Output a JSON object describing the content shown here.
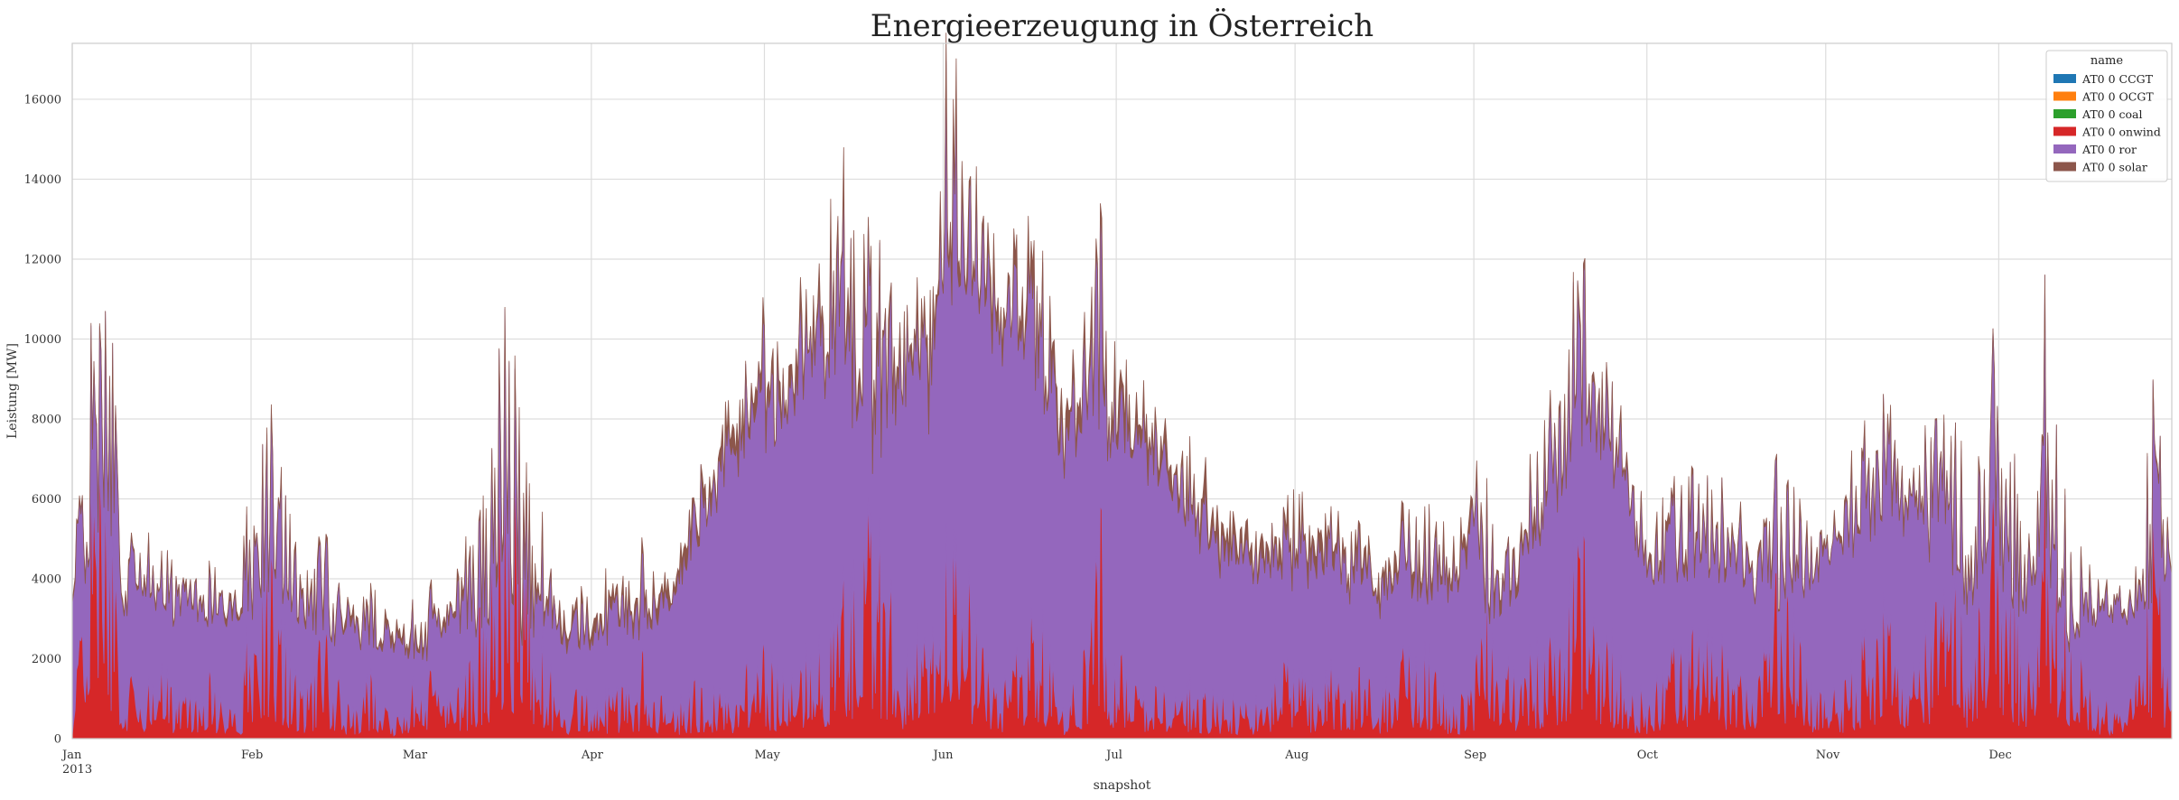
{
  "chart_data": {
    "type": "area",
    "stacked": true,
    "title": "Energieerzeugung in Österreich",
    "xlabel": "snapshot",
    "ylabel": "Leistung [MW]",
    "ylim": [
      0,
      17400
    ],
    "yticks": [
      0,
      2000,
      4000,
      6000,
      8000,
      10000,
      12000,
      14000,
      16000
    ],
    "xlim": [
      "2013-01-01",
      "2013-12-31"
    ],
    "xticks": [
      {
        "date": "2013-01-01",
        "label": "Jan",
        "sublabel": "2013"
      },
      {
        "date": "2013-02-01",
        "label": "Feb"
      },
      {
        "date": "2013-03-01",
        "label": "Mar"
      },
      {
        "date": "2013-04-01",
        "label": "Apr"
      },
      {
        "date": "2013-05-01",
        "label": "May"
      },
      {
        "date": "2013-06-01",
        "label": "Jun"
      },
      {
        "date": "2013-07-01",
        "label": "Jul"
      },
      {
        "date": "2013-08-01",
        "label": "Aug"
      },
      {
        "date": "2013-09-01",
        "label": "Sep"
      },
      {
        "date": "2013-10-01",
        "label": "Oct"
      },
      {
        "date": "2013-11-01",
        "label": "Nov"
      },
      {
        "date": "2013-12-01",
        "label": "Dec"
      }
    ],
    "grid": true,
    "legend": {
      "title": "name",
      "position": "top-right",
      "entries": [
        "AT0 0 CCGT",
        "AT0 0 OCGT",
        "AT0 0 coal",
        "AT0 0 onwind",
        "AT0 0 ror",
        "AT0 0 solar"
      ]
    },
    "series": [
      {
        "name": "AT0 0 CCGT",
        "color": "#1f77b4",
        "dates": [
          "2013-01-01",
          "2013-12-31"
        ],
        "values": [
          0,
          0
        ]
      },
      {
        "name": "AT0 0 OCGT",
        "color": "#ff7f0e",
        "dates": [
          "2013-01-01",
          "2013-12-31"
        ],
        "values": [
          0,
          0
        ]
      },
      {
        "name": "AT0 0 coal",
        "color": "#2ca02c",
        "dates": [
          "2013-01-01",
          "2013-12-31"
        ],
        "values": [
          0,
          0
        ]
      },
      {
        "name": "AT0 0 onwind",
        "color": "#d62728",
        "dates": [
          "2013-01-01",
          "2013-01-04",
          "2013-01-06",
          "2013-01-08",
          "2013-01-10",
          "2013-01-13",
          "2013-01-16",
          "2013-01-20",
          "2013-01-24",
          "2013-01-27",
          "2013-01-30",
          "2013-02-02",
          "2013-02-06",
          "2013-02-10",
          "2013-02-14",
          "2013-02-18",
          "2013-02-22",
          "2013-02-26",
          "2013-03-02",
          "2013-03-06",
          "2013-03-10",
          "2013-03-14",
          "2013-03-17",
          "2013-03-20",
          "2013-03-23",
          "2013-03-27",
          "2013-04-01",
          "2013-04-05",
          "2013-04-10",
          "2013-04-15",
          "2013-04-20",
          "2013-04-25",
          "2013-04-30",
          "2013-05-05",
          "2013-05-10",
          "2013-05-15",
          "2013-05-20",
          "2013-05-25",
          "2013-05-30",
          "2013-06-01",
          "2013-06-03",
          "2013-06-07",
          "2013-06-12",
          "2013-06-17",
          "2013-06-22",
          "2013-06-26",
          "2013-06-28",
          "2013-07-01",
          "2013-07-06",
          "2013-07-12",
          "2013-07-18",
          "2013-07-24",
          "2013-07-30",
          "2013-08-05",
          "2013-08-10",
          "2013-08-16",
          "2013-08-22",
          "2013-08-28",
          "2013-09-01",
          "2013-09-03",
          "2013-09-08",
          "2013-09-14",
          "2013-09-20",
          "2013-09-26",
          "2013-10-01",
          "2013-10-06",
          "2013-10-12",
          "2013-10-18",
          "2013-10-24",
          "2013-10-30",
          "2013-11-04",
          "2013-11-10",
          "2013-11-16",
          "2013-11-22",
          "2013-11-26",
          "2013-11-30",
          "2013-12-03",
          "2013-12-06",
          "2013-12-09",
          "2013-12-13",
          "2013-12-18",
          "2013-12-22",
          "2013-12-25",
          "2013-12-28",
          "2013-12-31"
        ],
        "values": [
          300,
          4500,
          5400,
          3800,
          1000,
          800,
          1500,
          600,
          1200,
          700,
          300,
          3600,
          2300,
          900,
          1700,
          500,
          1300,
          400,
          1200,
          800,
          1100,
          2400,
          4800,
          3500,
          1800,
          600,
          900,
          700,
          1300,
          500,
          1100,
          700,
          1600,
          900,
          1700,
          2600,
          3900,
          1300,
          2100,
          3100,
          3800,
          1900,
          900,
          2300,
          600,
          1900,
          3700,
          1400,
          700,
          1100,
          800,
          600,
          1300,
          900,
          1500,
          800,
          1900,
          600,
          900,
          2600,
          1100,
          1700,
          3400,
          1300,
          700,
          1500,
          1900,
          900,
          2800,
          700,
          900,
          2300,
          1200,
          3200,
          1500,
          4300,
          3000,
          1200,
          5600,
          1900,
          700,
          500,
          1300,
          3700,
          500
        ]
      },
      {
        "name": "AT0 0 ror",
        "color": "#9467bd",
        "dates": [
          "2013-01-01",
          "2013-01-04",
          "2013-01-06",
          "2013-01-08",
          "2013-01-10",
          "2013-01-13",
          "2013-01-16",
          "2013-01-20",
          "2013-01-24",
          "2013-01-27",
          "2013-01-30",
          "2013-02-02",
          "2013-02-06",
          "2013-02-10",
          "2013-02-14",
          "2013-02-18",
          "2013-02-22",
          "2013-02-26",
          "2013-03-02",
          "2013-03-06",
          "2013-03-10",
          "2013-03-14",
          "2013-03-17",
          "2013-03-20",
          "2013-03-23",
          "2013-03-27",
          "2013-04-01",
          "2013-04-05",
          "2013-04-10",
          "2013-04-15",
          "2013-04-20",
          "2013-04-25",
          "2013-04-30",
          "2013-05-05",
          "2013-05-10",
          "2013-05-15",
          "2013-05-20",
          "2013-05-25",
          "2013-05-30",
          "2013-06-01",
          "2013-06-03",
          "2013-06-07",
          "2013-06-12",
          "2013-06-17",
          "2013-06-22",
          "2013-06-26",
          "2013-06-28",
          "2013-07-01",
          "2013-07-06",
          "2013-07-12",
          "2013-07-18",
          "2013-07-24",
          "2013-07-30",
          "2013-08-05",
          "2013-08-10",
          "2013-08-16",
          "2013-08-22",
          "2013-08-28",
          "2013-09-01",
          "2013-09-03",
          "2013-09-08",
          "2013-09-14",
          "2013-09-20",
          "2013-09-26",
          "2013-10-01",
          "2013-10-06",
          "2013-10-12",
          "2013-10-18",
          "2013-10-24",
          "2013-10-30",
          "2013-11-04",
          "2013-11-10",
          "2013-11-16",
          "2013-11-22",
          "2013-11-26",
          "2013-11-30",
          "2013-12-03",
          "2013-12-06",
          "2013-12-09",
          "2013-12-13",
          "2013-12-18",
          "2013-12-22",
          "2013-12-25",
          "2013-12-28",
          "2013-12-31"
        ],
        "values": [
          3500,
          3200,
          3800,
          4500,
          3000,
          3600,
          2700,
          3000,
          2600,
          2800,
          2800,
          2800,
          3400,
          2600,
          2200,
          2500,
          1900,
          2200,
          1700,
          2100,
          2700,
          2200,
          3800,
          1400,
          2700,
          2200,
          2100,
          2500,
          2400,
          3100,
          5100,
          6600,
          7300,
          8100,
          9100,
          8800,
          5800,
          8700,
          7600,
          10800,
          10400,
          10100,
          9600,
          8900,
          7000,
          7600,
          7200,
          6900,
          6900,
          5500,
          4300,
          4200,
          3500,
          3900,
          3500,
          3100,
          3300,
          3300,
          4700,
          2300,
          3200,
          5500,
          6300,
          6500,
          3900,
          3800,
          3500,
          3700,
          2700,
          3700,
          4400,
          5100,
          5200,
          3700,
          2900,
          3800,
          2700,
          2800,
          3300,
          2000,
          2800,
          2900,
          2300,
          3100,
          3600
        ]
      },
      {
        "name": "AT0 0 solar",
        "color": "#8c564b",
        "dates": [
          "2013-01-01",
          "2013-03-01",
          "2013-05-01",
          "2013-06-21",
          "2013-08-01",
          "2013-10-01",
          "2013-12-31"
        ],
        "values": [
          60,
          140,
          320,
          420,
          320,
          140,
          60
        ]
      }
    ]
  }
}
